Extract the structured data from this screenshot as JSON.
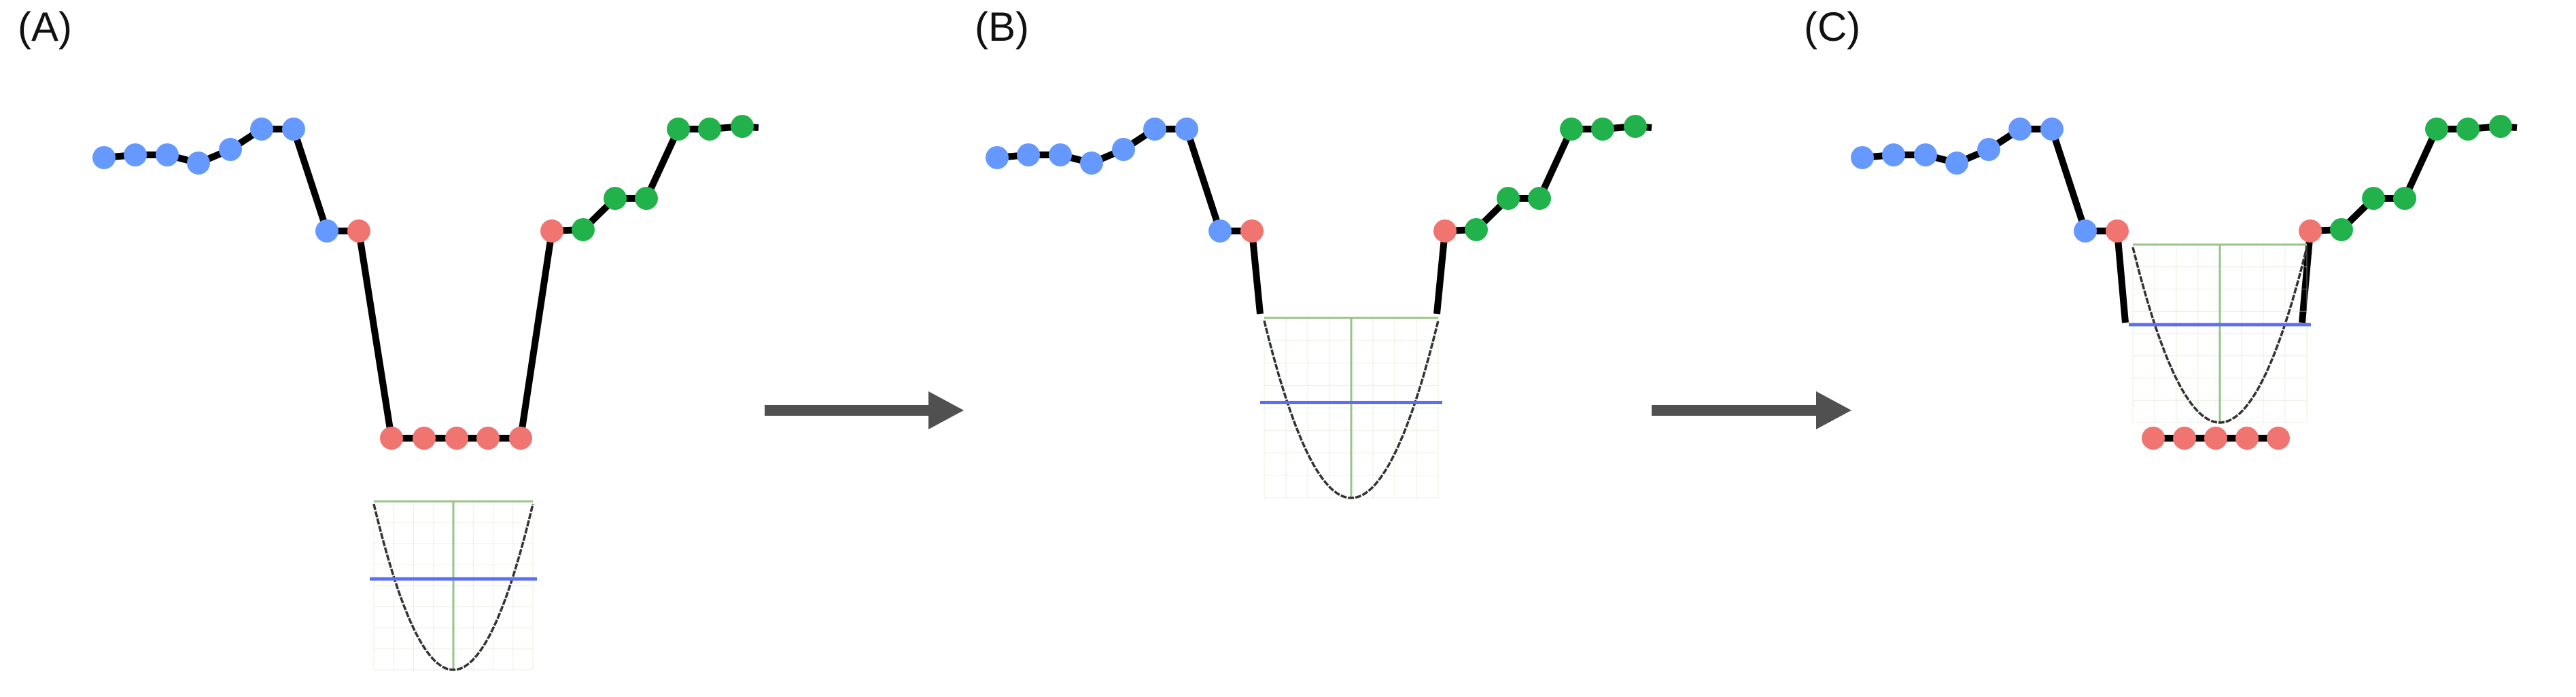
{
  "panels": [
    {
      "label": "(A)"
    },
    {
      "label": "(B)"
    },
    {
      "label": "(C)"
    }
  ],
  "colors": {
    "chain_line": "#000000",
    "blue_beads": "#6699ff",
    "red_beads": "#f07470",
    "green_beads": "#22b24c",
    "well_curve": "#333333",
    "well_grid": "#d4e4cc",
    "well_axis": "#97c487",
    "level_line": "#5b6ef5",
    "arrow": "#505050"
  },
  "icons": {
    "arrow_1": "right-arrow-icon",
    "arrow_2": "right-arrow-icon"
  }
}
